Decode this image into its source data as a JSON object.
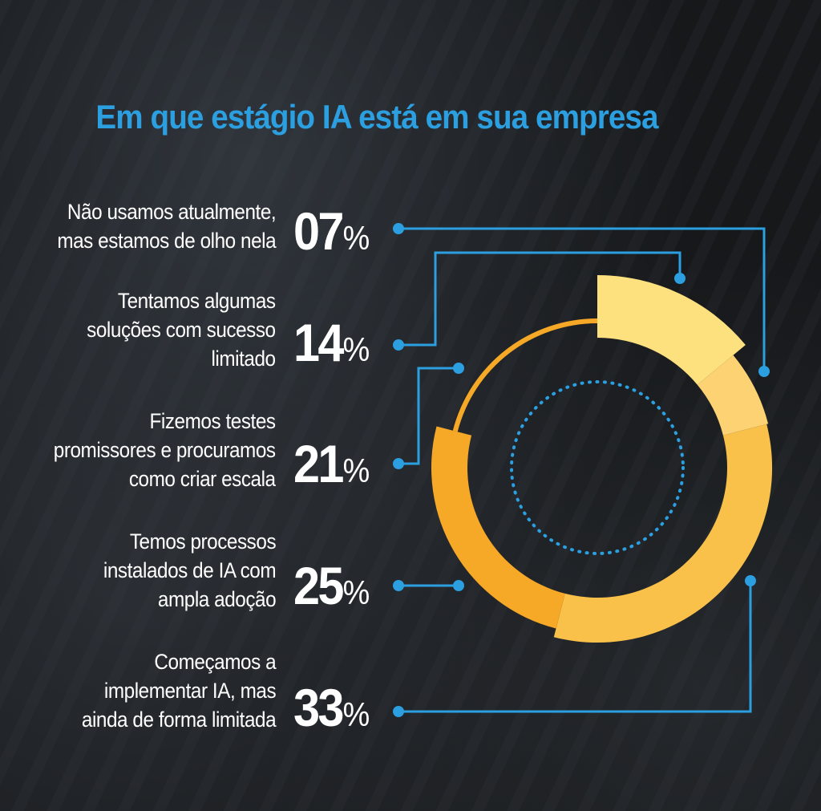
{
  "chart_data": {
    "type": "pie",
    "title": "Em que estágio IA está em sua empresa",
    "categories": [
      "Não usamos atualmente, mas estamos de olho nela",
      "Tentamos algumas soluções com sucesso limitado",
      "Fizemos testes promissores e procuramos como criar escala",
      "Temos processos instalados de IA com ampla adoção",
      "Começamos a implementar IA, mas ainda de forma limitada"
    ],
    "values": [
      7,
      14,
      21,
      25,
      33
    ],
    "value_labels": [
      "07",
      "14",
      "21",
      "25",
      "33"
    ],
    "percent_sign": "%",
    "label_lines": [
      [
        "Não usamos atualmente,",
        "mas estamos de olho nela"
      ],
      [
        "Tentamos algumas",
        "soluções com sucesso",
        "limitado"
      ],
      [
        "Fizemos testes",
        "promissores e procuramos",
        "como criar escala"
      ],
      [
        "Temos processos",
        "instalados de IA com",
        "ampla adoção"
      ],
      [
        "Começamos a",
        "implementar IA, mas",
        "ainda de forma limitada"
      ]
    ],
    "colors": {
      "title": "#2b9fe0",
      "connector": "#2b9fe0",
      "segment_light": "#fde17f",
      "segment_mid": "#fcd272",
      "segment_gold": "#f9c04a",
      "segment_orange": "#f6a827",
      "dotted_ring": "#2b9fe0"
    }
  }
}
